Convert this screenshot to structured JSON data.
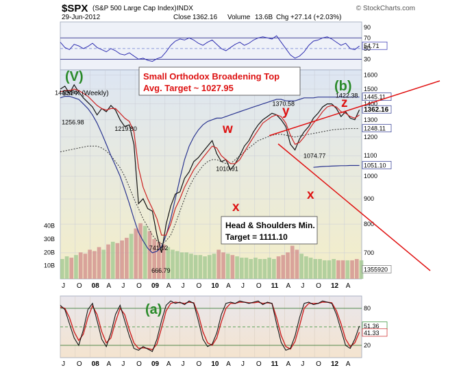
{
  "header": {
    "symbol": "$SPX",
    "name": "(S&P 500 Large Cap Index)",
    "exchange": "INDX",
    "date": "29-Jun-2012",
    "close_label": "Close",
    "close": "1362.16",
    "volume_label": "Volume",
    "volume": "13.6B",
    "change_label": "Chg",
    "change": "+27.14 (+2.03%)",
    "brand": "© StockCharts.com"
  },
  "chart_data": [
    {
      "type": "line",
      "panel": "rsi",
      "ylim": [
        10,
        100
      ],
      "yticks": [
        "90",
        "70",
        "50",
        "30"
      ],
      "levels": [
        70,
        50,
        30
      ],
      "last_value_label": "54.71",
      "last_value": 54.71,
      "x": [
        0,
        4,
        8,
        12,
        16,
        20,
        24,
        28,
        32,
        36,
        40,
        44,
        48,
        52,
        56,
        60,
        64,
        68,
        72,
        76,
        80,
        84,
        88,
        92,
        96,
        100,
        104,
        108,
        112,
        116,
        120,
        124,
        128,
        132,
        136,
        140,
        144,
        148,
        152,
        156,
        160,
        164,
        168,
        172,
        176,
        180,
        184,
        188,
        192,
        196,
        200,
        204,
        208,
        212,
        216,
        220,
        224,
        228,
        232,
        236,
        240,
        244,
        248,
        252,
        256,
        260
      ],
      "values": [
        62,
        52,
        48,
        58,
        55,
        50,
        54,
        60,
        52,
        48,
        44,
        50,
        46,
        40,
        38,
        42,
        36,
        30,
        32,
        28,
        26,
        31,
        34,
        44,
        56,
        64,
        68,
        66,
        70,
        66,
        60,
        56,
        62,
        66,
        58,
        50,
        46,
        52,
        58,
        62,
        56,
        60,
        66,
        70,
        72,
        70,
        68,
        74,
        62,
        50,
        38,
        32,
        36,
        44,
        56,
        64,
        66,
        70,
        72,
        68,
        62,
        56,
        60,
        50,
        48,
        54.71
      ],
      "color": "#2e2eb0"
    },
    {
      "type": "line",
      "panel": "price",
      "scale": "log",
      "ylim": [
        620,
        1640
      ],
      "yticks": [
        1600,
        1500,
        1400,
        1300,
        1200,
        1100,
        1000,
        900,
        800,
        700
      ],
      "xticks": [
        {
          "t": 0,
          "label": "J"
        },
        {
          "t": 13,
          "label": "O"
        },
        {
          "t": 26,
          "label": "08"
        },
        {
          "t": 39,
          "label": "A"
        },
        {
          "t": 52,
          "label": "J"
        },
        {
          "t": 65,
          "label": "O"
        },
        {
          "t": 78,
          "label": "09"
        },
        {
          "t": 91,
          "label": "A"
        },
        {
          "t": 104,
          "label": "J"
        },
        {
          "t": 117,
          "label": "O"
        },
        {
          "t": 130,
          "label": "10"
        },
        {
          "t": 143,
          "label": "A"
        },
        {
          "t": 156,
          "label": "J"
        },
        {
          "t": 169,
          "label": "O"
        },
        {
          "t": 182,
          "label": "11"
        },
        {
          "t": 195,
          "label": "A"
        },
        {
          "t": 208,
          "label": "J"
        },
        {
          "t": 221,
          "label": "O"
        },
        {
          "t": 234,
          "label": "12"
        },
        {
          "t": 247,
          "label": "A"
        }
      ],
      "x": [
        0,
        4,
        8,
        12,
        16,
        20,
        24,
        28,
        32,
        36,
        40,
        44,
        48,
        52,
        56,
        60,
        64,
        68,
        72,
        76,
        80,
        84,
        88,
        92,
        96,
        100,
        104,
        108,
        112,
        116,
        120,
        124,
        128,
        132,
        136,
        140,
        144,
        148,
        152,
        156,
        160,
        164,
        168,
        172,
        176,
        180,
        184,
        188,
        192,
        196,
        200,
        204,
        208,
        212,
        216,
        220,
        224,
        228,
        232,
        236,
        240,
        244,
        248,
        252,
        256,
        260
      ],
      "close": [
        1500,
        1520,
        1470,
        1530,
        1480,
        1440,
        1410,
        1380,
        1330,
        1370,
        1350,
        1390,
        1360,
        1300,
        1260,
        1270,
        1160,
        880,
        900,
        860,
        850,
        760,
        700,
        800,
        870,
        920,
        930,
        990,
        1020,
        1070,
        1090,
        1120,
        1150,
        1180,
        1110,
        1070,
        1080,
        1030,
        1060,
        1100,
        1150,
        1180,
        1230,
        1270,
        1300,
        1320,
        1340,
        1330,
        1300,
        1260,
        1160,
        1130,
        1190,
        1230,
        1260,
        1310,
        1340,
        1380,
        1400,
        1400,
        1370,
        1320,
        1350,
        1310,
        1300,
        1362
      ],
      "ma_short": [
        1480,
        1490,
        1490,
        1500,
        1490,
        1470,
        1450,
        1420,
        1390,
        1370,
        1360,
        1370,
        1370,
        1340,
        1310,
        1290,
        1230,
        1040,
        950,
        900,
        860,
        820,
        760,
        760,
        800,
        860,
        900,
        950,
        990,
        1030,
        1060,
        1090,
        1120,
        1150,
        1140,
        1100,
        1080,
        1060,
        1060,
        1080,
        1120,
        1160,
        1200,
        1240,
        1280,
        1300,
        1320,
        1330,
        1320,
        1280,
        1210,
        1160,
        1170,
        1200,
        1240,
        1280,
        1310,
        1350,
        1380,
        1390,
        1380,
        1350,
        1340,
        1320,
        1310,
        1330
      ],
      "ma_long": [
        1440,
        1450,
        1450,
        1440,
        1430,
        1400,
        1370,
        1330,
        1280,
        1220,
        1160,
        1100,
        1050,
        1000,
        940,
        880,
        820,
        770,
        740,
        715,
        700,
        705,
        720,
        760,
        820,
        900,
        990,
        1080,
        1150,
        1200,
        1240,
        1270,
        1290,
        1300,
        1310,
        1310,
        1320,
        1330,
        1340,
        1350,
        1360,
        1370,
        1380,
        1390,
        1400,
        1410,
        1420,
        1430,
        1430,
        1420,
        1420,
        1420,
        1430,
        1440,
        1440,
        1440,
        1445,
        1445,
        1445,
        1445,
        1445,
        1445,
        1445,
        1445,
        1445,
        1445
      ],
      "ma_mid": [
        1120,
        1125,
        1130,
        1135,
        1140,
        1145,
        1150,
        1150,
        1150,
        1140,
        1125,
        1100,
        1070,
        1040,
        1000,
        950,
        900,
        860,
        820,
        790,
        760,
        740,
        730,
        740,
        760,
        800,
        850,
        900,
        950,
        990,
        1020,
        1050,
        1070,
        1080,
        1080,
        1070,
        1060,
        1060,
        1080,
        1100,
        1120,
        1140,
        1160,
        1180,
        1190,
        1200,
        1210,
        1215,
        1215,
        1210,
        1205,
        1200,
        1205,
        1210,
        1215,
        1220,
        1225,
        1230,
        1235,
        1240,
        1243,
        1245,
        1247,
        1248,
        1248,
        1248
      ],
      "ma_200": [
        null,
        null,
        null,
        null,
        null,
        null,
        null,
        null,
        null,
        null,
        null,
        null,
        null,
        null,
        null,
        null,
        null,
        null,
        null,
        null,
        null,
        null,
        null,
        null,
        null,
        null,
        null,
        null,
        null,
        null,
        null,
        null,
        null,
        null,
        null,
        null,
        null,
        null,
        null,
        null,
        null,
        null,
        null,
        null,
        null,
        null,
        null,
        null,
        null,
        null,
        null,
        null,
        null,
        null,
        null,
        1042,
        1044,
        1046,
        1047,
        1048,
        1049,
        1050,
        1050,
        1051,
        1051,
        1051
      ],
      "value_labels": [
        {
          "t": 6,
          "value": 1440.24,
          "label": "1440.24"
        },
        {
          "t": 12,
          "value": 1256.98,
          "label": "1256.98"
        },
        {
          "t": 58,
          "value": 1219.8,
          "label": "1219.80"
        },
        {
          "t": 146,
          "value": 1010.91,
          "label": "1010.91"
        },
        {
          "t": 88,
          "value": 741.02,
          "label": "741.02"
        },
        {
          "t": 90,
          "value": 666.79,
          "label": "666.79"
        },
        {
          "t": 195,
          "value": 1370.58,
          "label": "1370.58"
        },
        {
          "t": 222,
          "value": 1074.77,
          "label": "1074.77"
        },
        {
          "t": 250,
          "value": 1422.38,
          "label": "1422.38"
        }
      ],
      "right_labels": [
        {
          "value": 1445.11,
          "label": "1445.11",
          "fill": "#ffffff"
        },
        {
          "value": 1362.16,
          "label": "1362.16",
          "fill": "#ffffff",
          "bold": true
        },
        {
          "value": 1248.11,
          "label": "1248.11",
          "fill": "#ffffff"
        },
        {
          "value": 1051.1,
          "label": "1051.10",
          "fill": "#ffffff"
        }
      ],
      "volume": {
        "ylim": [
          0,
          45
        ],
        "yticks": [
          "40B",
          "30B",
          "20B",
          "10B"
        ],
        "last_label": "1355920",
        "values": [
          15,
          17,
          16,
          18,
          20,
          19,
          22,
          21,
          24,
          22,
          26,
          28,
          27,
          29,
          31,
          34,
          38,
          42,
          40,
          36,
          30,
          28,
          26,
          24,
          22,
          21,
          20,
          20,
          19,
          18,
          18,
          17,
          18,
          19,
          22,
          20,
          19,
          18,
          17,
          16,
          16,
          15,
          16,
          15,
          15,
          16,
          15,
          17,
          18,
          20,
          25,
          22,
          19,
          17,
          16,
          15,
          15,
          14,
          14,
          15,
          14,
          14,
          14,
          14,
          15,
          14
        ]
      }
    },
    {
      "type": "line",
      "panel": "stochastic",
      "ylim": [
        0,
        100
      ],
      "yticks": [
        "80",
        "20"
      ],
      "levels": [
        80,
        50,
        20
      ],
      "last_labels": [
        "51.36",
        "41.33"
      ],
      "k": [
        85,
        78,
        55,
        32,
        20,
        45,
        78,
        88,
        60,
        30,
        18,
        40,
        70,
        85,
        60,
        35,
        15,
        12,
        18,
        14,
        10,
        30,
        60,
        85,
        92,
        88,
        90,
        86,
        92,
        88,
        60,
        30,
        18,
        22,
        40,
        70,
        88,
        90,
        88,
        92,
        90,
        88,
        90,
        92,
        86,
        90,
        88,
        55,
        25,
        12,
        15,
        35,
        65,
        88,
        90,
        86,
        88,
        92,
        90,
        88,
        70,
        45,
        20,
        15,
        30,
        51.36
      ],
      "d": [
        82,
        80,
        65,
        42,
        28,
        38,
        65,
        84,
        70,
        42,
        24,
        32,
        58,
        80,
        70,
        45,
        24,
        15,
        16,
        15,
        13,
        22,
        48,
        76,
        88,
        90,
        89,
        88,
        90,
        89,
        70,
        42,
        24,
        20,
        32,
        58,
        80,
        88,
        88,
        90,
        90,
        89,
        89,
        90,
        88,
        89,
        88,
        65,
        36,
        18,
        14,
        26,
        52,
        80,
        88,
        88,
        88,
        90,
        90,
        89,
        76,
        55,
        30,
        18,
        24,
        41.33
      ]
    }
  ],
  "annotations": {
    "wave_V": "(V)",
    "wave_b": "(b)",
    "wave_a": "(a)",
    "w": "w",
    "x1": "x",
    "y": "y",
    "x2": "x",
    "z": "z",
    "broadening_line1": "Small Orthodox Broadening Top",
    "broadening_line2": "Avg. Target ~ 1027.95",
    "hs_line1": "Head & Shoulders Min.",
    "hs_line2": "Target = 1111.10",
    "legend_label": "$SPX (Weekly)"
  },
  "colors": {
    "rsi_bg": "#eef1f8",
    "price_bg_top": "#dfe6f2",
    "price_bg_bottom": "#f3ecc6",
    "stoch_bg": "#f4e6d4",
    "wave_green": "#2a8a2a",
    "wave_red": "#dd1111",
    "ma_long": "#2a3590",
    "price": "#111111",
    "ma_short": "#cc2222",
    "trend_line": "#e01010"
  }
}
